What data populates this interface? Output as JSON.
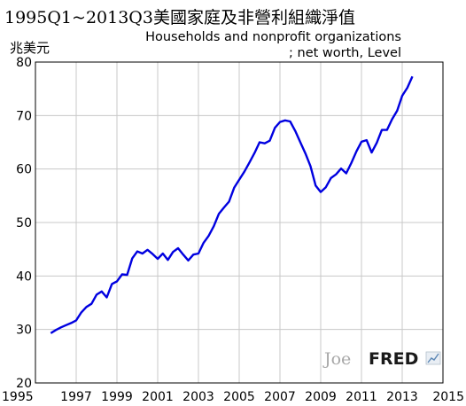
{
  "chart_data": {
    "type": "line",
    "title": "1995Q1~2013Q3美國家庭及非營利組織淨值",
    "subtitle_line1": "Households and nonprofit organizations",
    "subtitle_line2": "; net worth, Level",
    "ylabel": "兆美元",
    "xlim": [
      1995,
      2015
    ],
    "ylim": [
      20,
      80
    ],
    "x_ticks": [
      "1995",
      "1997",
      "1999",
      "2001",
      "2003",
      "2005",
      "2007",
      "2009",
      "2011",
      "2013",
      "2015"
    ],
    "y_ticks": [
      "20",
      "30",
      "40",
      "50",
      "60",
      "70",
      "80"
    ],
    "grid": true,
    "series": [
      {
        "color": "#0000e0",
        "x": [
          1995.75,
          1996.0,
          1996.25,
          1996.5,
          1996.75,
          1997.0,
          1997.25,
          1997.5,
          1997.75,
          1998.0,
          1998.25,
          1998.5,
          1998.75,
          1999.0,
          1999.25,
          1999.5,
          1999.75,
          2000.0,
          2000.25,
          2000.5,
          2000.75,
          2001.0,
          2001.25,
          2001.5,
          2001.75,
          2002.0,
          2002.25,
          2002.5,
          2002.75,
          2003.0,
          2003.25,
          2003.5,
          2003.75,
          2004.0,
          2004.25,
          2004.5,
          2004.75,
          2005.0,
          2005.25,
          2005.5,
          2005.75,
          2006.0,
          2006.25,
          2006.5,
          2006.75,
          2007.0,
          2007.25,
          2007.5,
          2007.75,
          2008.0,
          2008.25,
          2008.5,
          2008.75,
          2009.0,
          2009.25,
          2009.5,
          2009.75,
          2010.0,
          2010.25,
          2010.5,
          2010.75,
          2011.0,
          2011.25,
          2011.5,
          2011.75,
          2012.0,
          2012.25,
          2012.5,
          2012.75,
          2013.0,
          2013.25,
          2013.5
        ],
        "values": [
          29.3,
          29.9,
          30.4,
          30.8,
          31.2,
          31.7,
          33.2,
          34.2,
          34.8,
          36.5,
          37.1,
          36.0,
          38.5,
          39.0,
          40.3,
          40.2,
          43.3,
          44.6,
          44.2,
          44.9,
          44.1,
          43.2,
          44.2,
          43.0,
          44.5,
          45.2,
          44.0,
          42.9,
          44.0,
          44.2,
          46.2,
          47.5,
          49.3,
          51.6,
          52.8,
          53.9,
          56.5,
          58.0,
          59.5,
          61.2,
          63.0,
          65.0,
          64.8,
          65.3,
          67.7,
          68.8,
          69.1,
          68.9,
          67.1,
          65.0,
          62.9,
          60.5,
          56.9,
          55.7,
          56.6,
          58.3,
          59.0,
          60.1,
          59.2,
          61.1,
          63.3,
          65.1,
          65.4,
          63.1,
          64.9,
          67.3,
          67.3,
          69.3,
          70.9,
          73.7,
          75.2,
          77.3
        ]
      }
    ]
  },
  "watermark": {
    "author": "Joe",
    "brand": "FRED"
  }
}
